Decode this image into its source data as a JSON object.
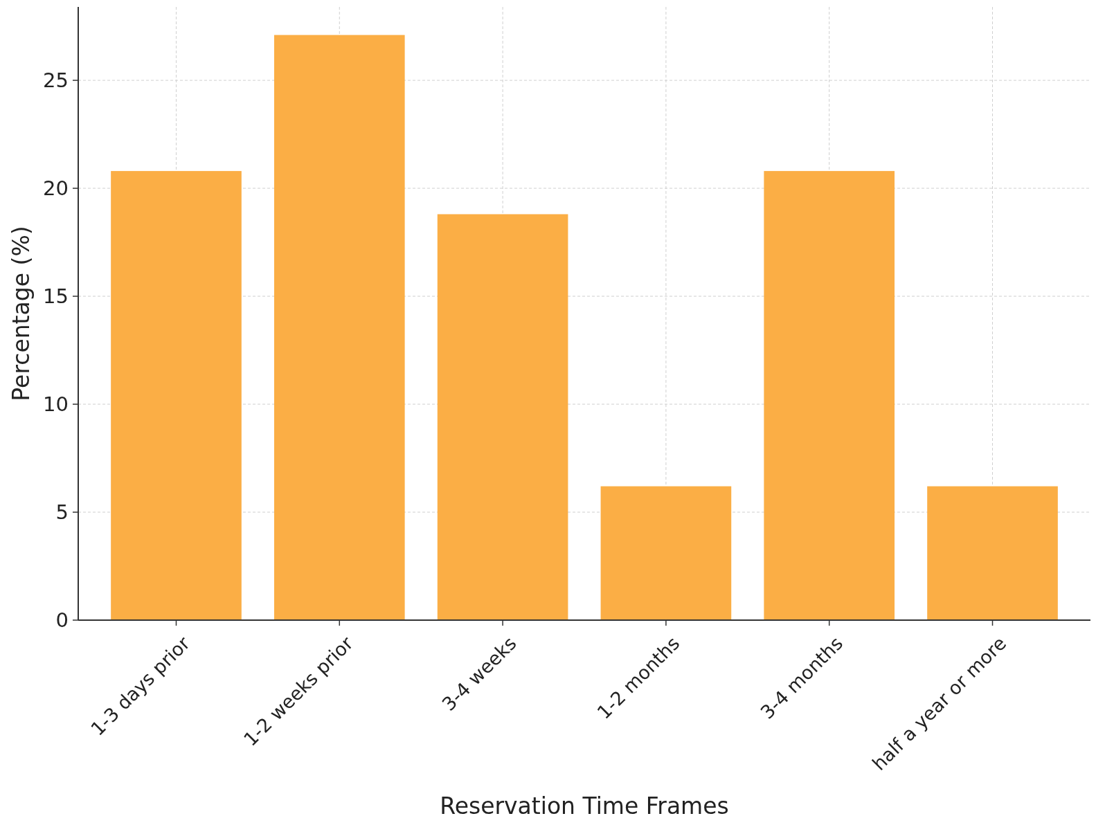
{
  "chart_data": {
    "type": "bar",
    "xlabel": "Reservation Time Frames",
    "ylabel": "Percentage (%)",
    "categories": [
      "1-3 days prior",
      "1-2 weeks prior",
      "3-4 weeks",
      "1-2 months",
      "3-4 months",
      "half a year or more"
    ],
    "values": [
      20.8,
      27.1,
      18.8,
      6.2,
      20.8,
      6.2
    ],
    "color": "#fbae45",
    "ylim": [
      0,
      28.4
    ],
    "yticks": [
      0,
      5,
      10,
      15,
      20,
      25
    ],
    "grid": true
  }
}
